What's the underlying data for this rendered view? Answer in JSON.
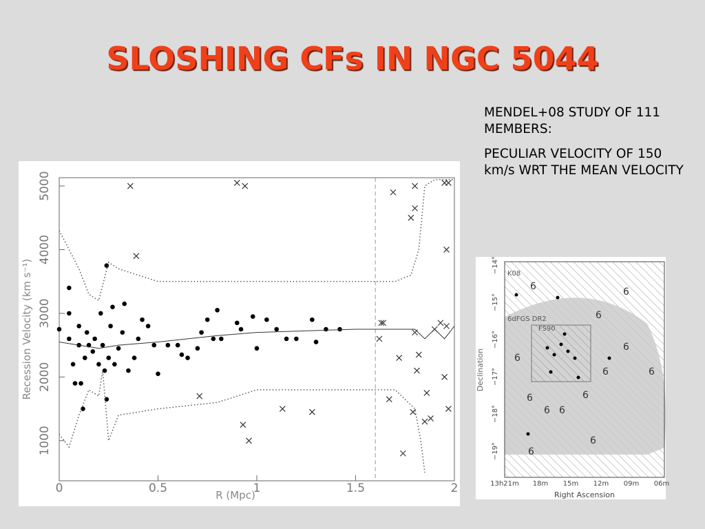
{
  "header": {
    "title": "SLOSHING CFs IN NGC 5044"
  },
  "text": {
    "paragraphs": [
      "MENDEL+08 STUDY OF 111 MEMBERS:",
      "PECULIAR VELOCITY OF 150 km/s WRT THE MEAN VELOCITY"
    ]
  },
  "chart_data": {
    "type": "scatter",
    "xlabel": "R (Mpc)",
    "ylabel": "Recession Velocity (km s⁻¹)",
    "xlim": [
      0,
      2
    ],
    "ylim": [
      370,
      5130
    ],
    "xticks": [
      0,
      0.5,
      1,
      1.5,
      2
    ],
    "yticks": [
      1000,
      2000,
      3000,
      4000,
      5000
    ],
    "vline": 1.6,
    "series": [
      {
        "marker": "circle",
        "color": "#000000",
        "x": [
          0,
          0.05,
          0.05,
          0.05,
          0.07,
          0.08,
          0.1,
          0.1,
          0.11,
          0.12,
          0.13,
          0.14,
          0.15,
          0.17,
          0.18,
          0.2,
          0.21,
          0.22,
          0.23,
          0.24,
          0.24,
          0.25,
          0.26,
          0.27,
          0.28,
          0.3,
          0.32,
          0.33,
          0.35,
          0.38,
          0.4,
          0.42,
          0.45,
          0.48,
          0.5,
          0.55,
          0.6,
          0.62,
          0.65,
          0.7,
          0.72,
          0.75,
          0.78,
          0.8,
          0.82,
          0.9,
          0.92,
          0.98,
          1.0,
          1.05,
          1.1,
          1.15,
          1.2,
          1.28,
          1.3,
          1.35,
          1.42
        ],
        "y": [
          2750,
          3400,
          3000,
          2600,
          2200,
          1900,
          2500,
          2800,
          1900,
          1500,
          2300,
          2700,
          2500,
          2400,
          2600,
          2200,
          3000,
          2500,
          2100,
          3750,
          1650,
          2300,
          2800,
          3100,
          2200,
          2450,
          2700,
          3150,
          2100,
          2300,
          2600,
          2900,
          2800,
          2500,
          2050,
          2500,
          2500,
          2350,
          2300,
          2450,
          2700,
          2900,
          2600,
          3050,
          2600,
          2850,
          2750,
          2950,
          2450,
          2900,
          2750,
          2600,
          2600,
          2900,
          2550,
          2750,
          2750
        ]
      },
      {
        "marker": "x",
        "color": "#333333",
        "x": [
          0.36,
          0.39,
          0.9,
          0.94,
          0.71,
          0.93,
          0.96,
          1.13,
          1.28,
          1.63,
          1.64,
          1.62,
          1.67,
          1.69,
          1.72,
          1.74,
          1.78,
          1.8,
          1.8,
          1.8,
          1.79,
          1.82,
          1.81,
          1.86,
          1.85,
          1.88,
          1.9,
          1.93,
          1.95,
          1.97,
          1.96,
          1.96,
          1.95,
          1.97
        ],
        "y": [
          5000,
          3900,
          5050,
          5000,
          1700,
          1250,
          1000,
          1500,
          1450,
          2850,
          2850,
          2600,
          1650,
          4900,
          2300,
          800,
          4500,
          4650,
          5000,
          2700,
          1450,
          2350,
          2100,
          1750,
          1300,
          1350,
          2750,
          2850,
          5050,
          5050,
          4000,
          2800,
          2000,
          1500
        ]
      },
      {
        "marker": "line",
        "style": "solid",
        "color": "#333333",
        "x": [
          0,
          0.1,
          0.2,
          0.3,
          0.5,
          0.8,
          1.0,
          1.5,
          1.8,
          1.85,
          1.9,
          1.95,
          2.0
        ],
        "y": [
          2550,
          2500,
          2450,
          2500,
          2550,
          2650,
          2700,
          2750,
          2750,
          2600,
          2750,
          2600,
          2800
        ]
      },
      {
        "marker": "line",
        "style": "dotted",
        "color": "#555555",
        "x": [
          0,
          0.1,
          0.15,
          0.2,
          0.25,
          0.3,
          0.5,
          1.0,
          1.5,
          1.7,
          1.78,
          1.82,
          1.85,
          1.9,
          2.0
        ],
        "y": [
          4300,
          3700,
          3300,
          3200,
          3800,
          3700,
          3500,
          3500,
          3500,
          3500,
          3600,
          4000,
          5000,
          5100,
          5100
        ]
      },
      {
        "marker": "line",
        "style": "dotted",
        "color": "#555555",
        "x": [
          0,
          0.05,
          0.1,
          0.15,
          0.2,
          0.22,
          0.25,
          0.3,
          0.5,
          0.8,
          0.9,
          1.0,
          1.5,
          1.7,
          1.8,
          1.83,
          1.85
        ],
        "y": [
          1100,
          900,
          1400,
          1800,
          1700,
          2100,
          1000,
          1400,
          1500,
          1600,
          1700,
          1800,
          1800,
          1800,
          1500,
          1000,
          500
        ]
      }
    ]
  },
  "map": {
    "labels": [
      "K08",
      "6dFGS DR2",
      "FS90"
    ],
    "xlabel": "Right Ascension",
    "ylabel": "Declination",
    "xticks": [
      "13h21m",
      "18m",
      "15m",
      "12m",
      "09m",
      "06m"
    ],
    "yticks": [
      "−14°",
      "−15°",
      "−16°",
      "−17°",
      "−18°",
      "−19°"
    ]
  }
}
